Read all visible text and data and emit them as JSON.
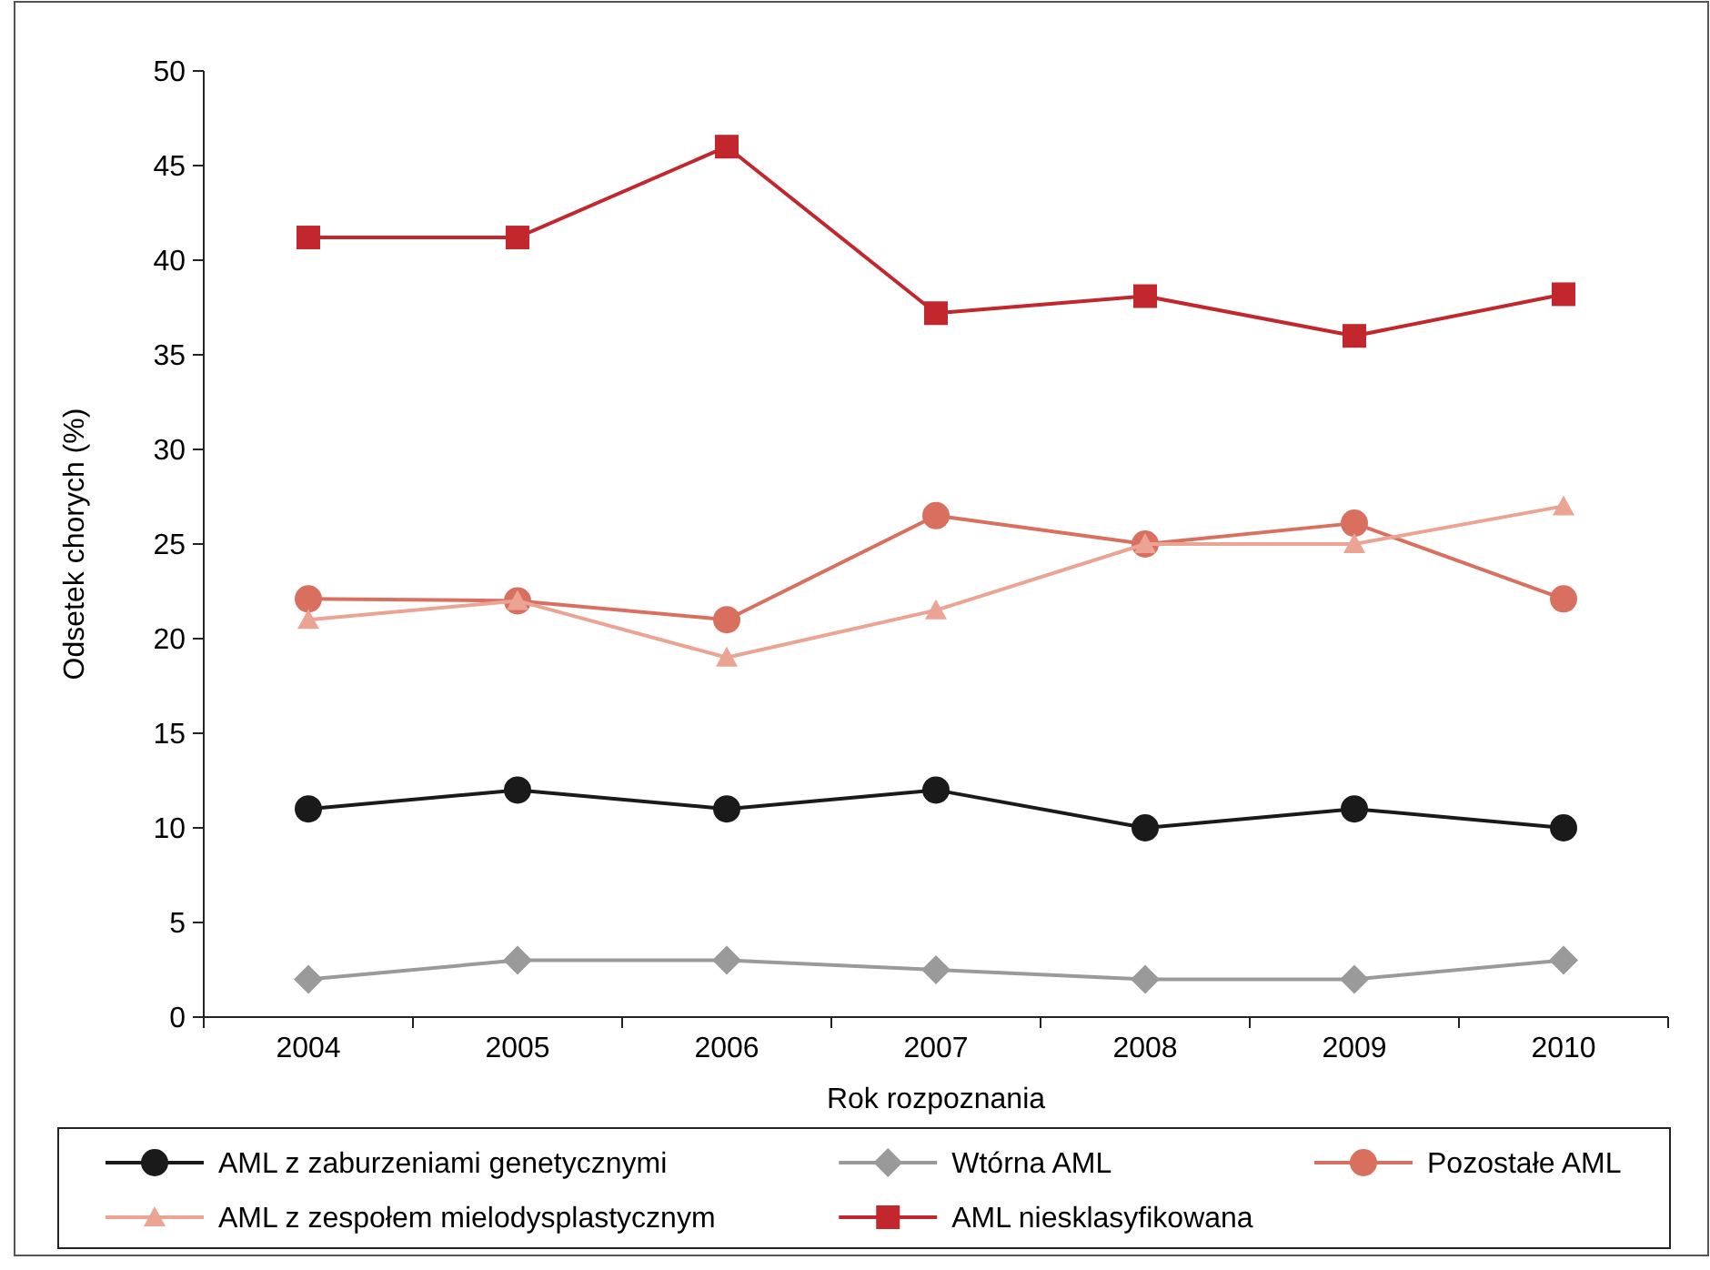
{
  "chart_data": {
    "type": "line",
    "xlabel": "Rok rozpoznania",
    "ylabel": "Odsetek chorych (%)",
    "categories": [
      "2004",
      "2005",
      "2006",
      "2007",
      "2008",
      "2009",
      "2010"
    ],
    "ylim": [
      0,
      50
    ],
    "yticks": [
      0,
      5,
      10,
      15,
      20,
      25,
      30,
      35,
      40,
      45,
      50
    ],
    "grid": false,
    "legend": "bottom",
    "line_style": "solid",
    "series": [
      {
        "name": "AML z zaburzeniami genetycznymi",
        "color": "#1a1a1a",
        "marker": "circle",
        "values": [
          11,
          12,
          11,
          12,
          10,
          11,
          10
        ]
      },
      {
        "name": "Wtórna AML",
        "color": "#9a9a9a",
        "marker": "diamond",
        "values": [
          2,
          3,
          3,
          2.5,
          2,
          2,
          3
        ]
      },
      {
        "name": "Pozostałe AML",
        "color": "#d9705f",
        "marker": "circle",
        "values": [
          22.1,
          22,
          21,
          26.5,
          25,
          26.1,
          22.1
        ]
      },
      {
        "name": "AML z zespołem mielodysplastycznym",
        "color": "#eba394",
        "marker": "triangle",
        "values": [
          21,
          22,
          19,
          21.5,
          25,
          25,
          27
        ]
      },
      {
        "name": "AML niesklasyfikowana",
        "color": "#c1272d",
        "marker": "square",
        "values": [
          41.2,
          41.2,
          46,
          37.2,
          38.1,
          36,
          38.2
        ]
      }
    ]
  }
}
